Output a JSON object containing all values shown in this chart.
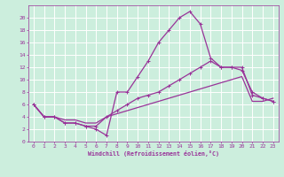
{
  "title": "",
  "xlabel": "Windchill (Refroidissement éolien,°C)",
  "background_color": "#cceedd",
  "grid_color": "#ffffff",
  "line_color": "#993399",
  "xlim": [
    -0.5,
    23.5
  ],
  "ylim": [
    0,
    22
  ],
  "xticks": [
    0,
    1,
    2,
    3,
    4,
    5,
    6,
    7,
    8,
    9,
    10,
    11,
    12,
    13,
    14,
    15,
    16,
    17,
    18,
    19,
    20,
    21,
    22,
    23
  ],
  "yticks": [
    0,
    2,
    4,
    6,
    8,
    10,
    12,
    14,
    16,
    18,
    20
  ],
  "line1_x": [
    0,
    1,
    2,
    3,
    4,
    5,
    6,
    7,
    8,
    9,
    10,
    11,
    12,
    13,
    14,
    15,
    16,
    17,
    18,
    19,
    20,
    21,
    22,
    23
  ],
  "line1_y": [
    6,
    4,
    4,
    3,
    3,
    2.5,
    2,
    1,
    8,
    8,
    10.5,
    13,
    16,
    18,
    20,
    21,
    19,
    13.5,
    12,
    12,
    11.5,
    8,
    7,
    6.5
  ],
  "line2_x": [
    0,
    1,
    2,
    3,
    4,
    5,
    6,
    7,
    8,
    9,
    10,
    11,
    12,
    13,
    14,
    15,
    16,
    17,
    18,
    19,
    20,
    21,
    22,
    23
  ],
  "line2_y": [
    6,
    4,
    4,
    3,
    3,
    2.5,
    2.5,
    4,
    5,
    6,
    7,
    7.5,
    8,
    9,
    10,
    11,
    12,
    13,
    12,
    12,
    12,
    7.5,
    7,
    6.5
  ],
  "line3_x": [
    0,
    1,
    2,
    3,
    4,
    5,
    6,
    7,
    8,
    9,
    10,
    11,
    12,
    13,
    14,
    15,
    16,
    17,
    18,
    19,
    20,
    21,
    22,
    23
  ],
  "line3_y": [
    6,
    4,
    4,
    3.5,
    3.5,
    3,
    3,
    4,
    4.5,
    5,
    5.5,
    6,
    6.5,
    7,
    7.5,
    8,
    8.5,
    9,
    9.5,
    10,
    10.5,
    6.5,
    6.5,
    7
  ]
}
